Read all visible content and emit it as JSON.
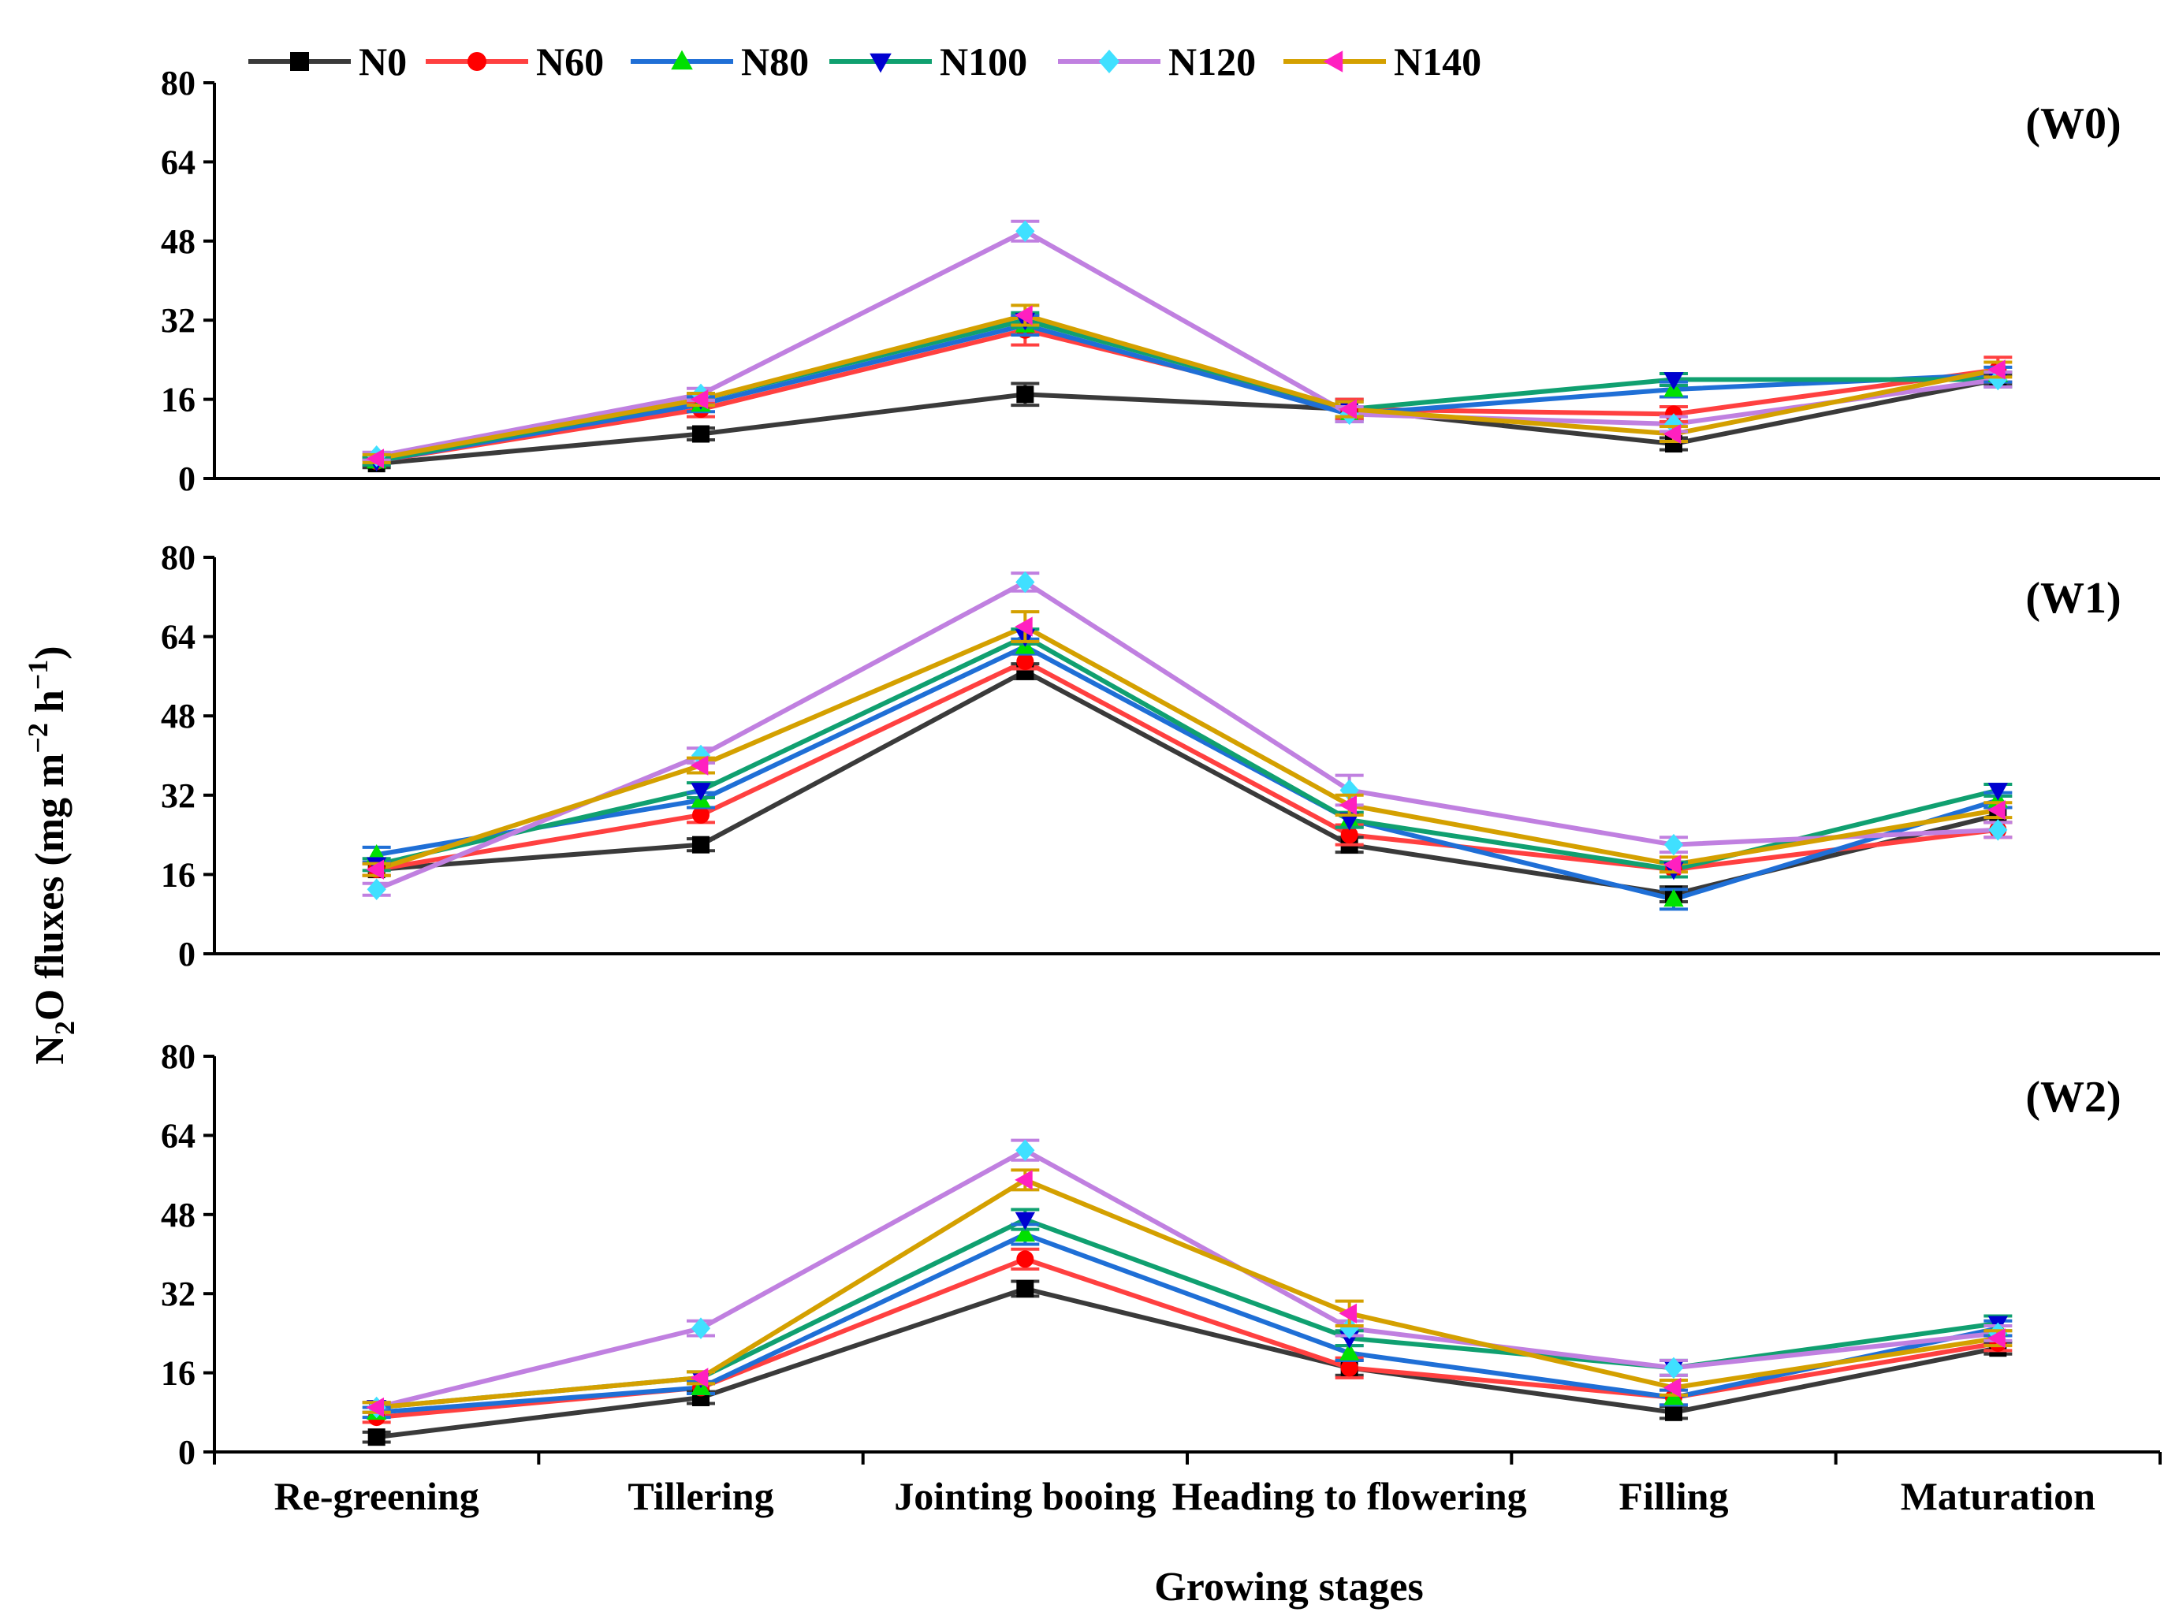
{
  "chart_data": {
    "type": "line",
    "ylabel": "N2O fluxes (mg m−2 h−1)",
    "xlabel": "Growing stages",
    "categories": [
      "Re-greening",
      "Tillering",
      "Jointing booing",
      "Heading to flowering",
      "Filling",
      "Maturation"
    ],
    "yticks": [
      "0",
      "16",
      "32",
      "48",
      "64",
      "80"
    ],
    "ylim": [
      0,
      80
    ],
    "legend": [
      {
        "name": "N0",
        "color": "#3a3a3a",
        "marker": "square",
        "marker_color": "#000000"
      },
      {
        "name": "N60",
        "color": "#ff4040",
        "marker": "circle",
        "marker_color": "#ff0000"
      },
      {
        "name": "N80",
        "color": "#1f6fd6",
        "marker": "triangle-up",
        "marker_color": "#00e000"
      },
      {
        "name": "N100",
        "color": "#10a070",
        "marker": "triangle-down",
        "marker_color": "#0000d0"
      },
      {
        "name": "N120",
        "color": "#c080e0",
        "marker": "diamond",
        "marker_color": "#40e0ff"
      },
      {
        "name": "N140",
        "color": "#d4a000",
        "marker": "triangle-left",
        "marker_color": "#ff20c0"
      }
    ],
    "panels": [
      {
        "label": "(W0)",
        "series": [
          {
            "name": "N0",
            "values": [
              3,
              9,
              17,
              14,
              7,
              20
            ],
            "errors": [
              0.8,
              1.2,
              2.2,
              2.0,
              1.2,
              1.0
            ]
          },
          {
            "name": "N60",
            "values": [
              3.5,
              14,
              30,
              14,
              13,
              22
            ],
            "errors": [
              0.8,
              1.5,
              3.0,
              2.0,
              1.5,
              2.5
            ]
          },
          {
            "name": "N80",
            "values": [
              3.5,
              15,
              31,
              13,
              18,
              21
            ],
            "errors": [
              0.8,
              1.5,
              2.0,
              1.5,
              1.5,
              1.5
            ]
          },
          {
            "name": "N100",
            "values": [
              3.5,
              16,
              32,
              14,
              20,
              20
            ],
            "errors": [
              0.8,
              1.2,
              1.5,
              1.5,
              1.2,
              1.5
            ]
          },
          {
            "name": "N120",
            "values": [
              4.5,
              17,
              50,
              13,
              11,
              20
            ],
            "errors": [
              0.8,
              1.2,
              2.0,
              1.5,
              1.5,
              1.5
            ]
          },
          {
            "name": "N140",
            "values": [
              4,
              16,
              33,
              14,
              9,
              22
            ],
            "errors": [
              0.8,
              1.2,
              2.0,
              1.5,
              1.5,
              1.5
            ]
          }
        ]
      },
      {
        "label": "(W1)",
        "series": [
          {
            "name": "N0",
            "values": [
              17,
              22,
              57,
              22,
              12,
              28
            ],
            "errors": [
              1.2,
              1.2,
              1.5,
              1.5,
              1.5,
              1.5
            ]
          },
          {
            "name": "N60",
            "values": [
              17,
              28,
              59,
              24,
              17,
              25
            ],
            "errors": [
              1.2,
              1.5,
              1.5,
              2.0,
              1.5,
              1.5
            ]
          },
          {
            "name": "N80",
            "values": [
              20,
              31,
              62,
              27,
              11,
              31
            ],
            "errors": [
              1.5,
              1.5,
              1.5,
              1.5,
              2.0,
              1.5
            ]
          },
          {
            "name": "N100",
            "values": [
              18,
              33,
              64,
              27,
              17,
              33
            ],
            "errors": [
              1.2,
              1.5,
              1.5,
              1.5,
              1.5,
              1.2
            ]
          },
          {
            "name": "N120",
            "values": [
              13,
              40,
              75,
              33,
              22,
              25
            ],
            "errors": [
              1.2,
              1.5,
              1.8,
              3.0,
              1.5,
              1.5
            ]
          },
          {
            "name": "N140",
            "values": [
              17,
              38,
              66,
              30,
              18,
              29
            ],
            "errors": [
              1.2,
              1.5,
              3.0,
              2.0,
              1.5,
              1.5
            ]
          }
        ]
      },
      {
        "label": "(W2)",
        "series": [
          {
            "name": "N0",
            "values": [
              3,
              11,
              33,
              17,
              8,
              21
            ],
            "errors": [
              1.0,
              1.2,
              1.5,
              1.5,
              1.2,
              1.2
            ]
          },
          {
            "name": "N60",
            "values": [
              7,
              13,
              39,
              17,
              11,
              22
            ],
            "errors": [
              1.0,
              1.2,
              2.0,
              2.0,
              1.5,
              1.5
            ]
          },
          {
            "name": "N80",
            "values": [
              8,
              13,
              44,
              20,
              11,
              25
            ],
            "errors": [
              1.0,
              1.2,
              2.0,
              1.5,
              1.5,
              1.5
            ]
          },
          {
            "name": "N100",
            "values": [
              9,
              15,
              47,
              23,
              17,
              26
            ],
            "errors": [
              1.0,
              1.2,
              2.0,
              1.5,
              1.5,
              1.5
            ]
          },
          {
            "name": "N120",
            "values": [
              9,
              25,
              61,
              25,
              17,
              24
            ],
            "errors": [
              1.0,
              1.5,
              2.0,
              1.5,
              1.5,
              1.5
            ]
          },
          {
            "name": "N140",
            "values": [
              9,
              15,
              55,
              28,
              13,
              23
            ],
            "errors": [
              1.0,
              1.2,
              2.0,
              2.5,
              1.5,
              1.5
            ]
          }
        ]
      }
    ]
  }
}
